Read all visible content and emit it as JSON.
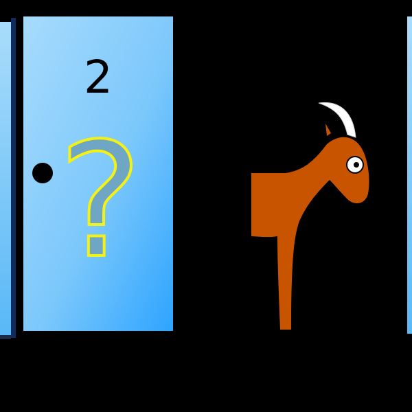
{
  "scene": {
    "background_color": "#000000",
    "doors": [
      {
        "id": "left-door-edge",
        "state": "closed",
        "color_light": "#a9dcfb",
        "color_dark": "#59b8f6"
      },
      {
        "id": "door-2",
        "number": "2",
        "state": "closed",
        "symbol": "question-mark",
        "symbol_fill": "#6fa6c4",
        "symbol_outline": "#f4f215",
        "knob_color": "#000000",
        "color_light": "#a7dbfd",
        "color_dark": "#2ea4ff"
      },
      {
        "id": "door-3",
        "state": "open",
        "reveals": "goat",
        "goat_color": "#c95400",
        "horn_color": "#ffffff"
      },
      {
        "id": "right-door-edge",
        "state": "closed",
        "color_light": "#a9dcfb",
        "color_dark": "#59b8f6"
      }
    ]
  }
}
